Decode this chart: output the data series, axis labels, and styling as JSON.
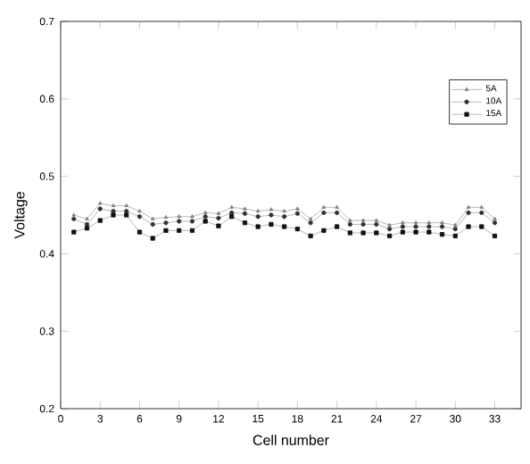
{
  "chart_data": {
    "type": "line",
    "xlabel": "Cell number",
    "ylabel": "Voltage",
    "x": [
      1,
      2,
      3,
      4,
      5,
      6,
      7,
      8,
      9,
      10,
      11,
      12,
      13,
      14,
      15,
      16,
      17,
      18,
      19,
      20,
      21,
      22,
      23,
      24,
      25,
      26,
      27,
      28,
      29,
      30,
      31,
      32,
      33
    ],
    "series": [
      {
        "name": "5A",
        "color": "#808080",
        "marker": "triangle",
        "values": [
          0.45,
          0.445,
          0.465,
          0.462,
          0.462,
          0.455,
          0.445,
          0.447,
          0.448,
          0.448,
          0.453,
          0.452,
          0.46,
          0.458,
          0.455,
          0.457,
          0.455,
          0.458,
          0.445,
          0.46,
          0.46,
          0.443,
          0.443,
          0.443,
          0.437,
          0.44,
          0.44,
          0.44,
          0.44,
          0.437,
          0.46,
          0.46,
          0.445
        ]
      },
      {
        "name": "10A",
        "color": "#303030",
        "marker": "circle",
        "values": [
          0.445,
          0.438,
          0.458,
          0.455,
          0.455,
          0.448,
          0.438,
          0.44,
          0.442,
          0.442,
          0.448,
          0.446,
          0.453,
          0.452,
          0.448,
          0.45,
          0.448,
          0.452,
          0.44,
          0.453,
          0.453,
          0.438,
          0.438,
          0.438,
          0.432,
          0.435,
          0.435,
          0.435,
          0.435,
          0.432,
          0.453,
          0.453,
          0.44
        ]
      },
      {
        "name": "15A",
        "color": "#101010",
        "marker": "square",
        "values": [
          0.428,
          0.433,
          0.443,
          0.45,
          0.45,
          0.428,
          0.42,
          0.43,
          0.43,
          0.43,
          0.442,
          0.436,
          0.448,
          0.44,
          0.435,
          0.438,
          0.435,
          0.432,
          0.423,
          0.43,
          0.435,
          0.427,
          0.427,
          0.427,
          0.423,
          0.428,
          0.428,
          0.428,
          0.425,
          0.423,
          0.435,
          0.435,
          0.423
        ]
      }
    ],
    "xlim": [
      0,
      35
    ],
    "ylim": [
      0.2,
      0.7
    ],
    "xticks": [
      0,
      3,
      6,
      9,
      12,
      15,
      18,
      21,
      24,
      27,
      30,
      33
    ],
    "yticks": [
      {
        "value": 0.2,
        "label": "0.2"
      },
      {
        "value": 0.3,
        "label": "0.3"
      },
      {
        "value": 0.4,
        "label": "0.4"
      },
      {
        "value": 0.5,
        "label": "0.5"
      },
      {
        "value": 0.6,
        "label": "0.6"
      },
      {
        "value": 0.7,
        "label": "0.7"
      }
    ],
    "legend": "top right",
    "grid": false,
    "line_style": "solid"
  }
}
